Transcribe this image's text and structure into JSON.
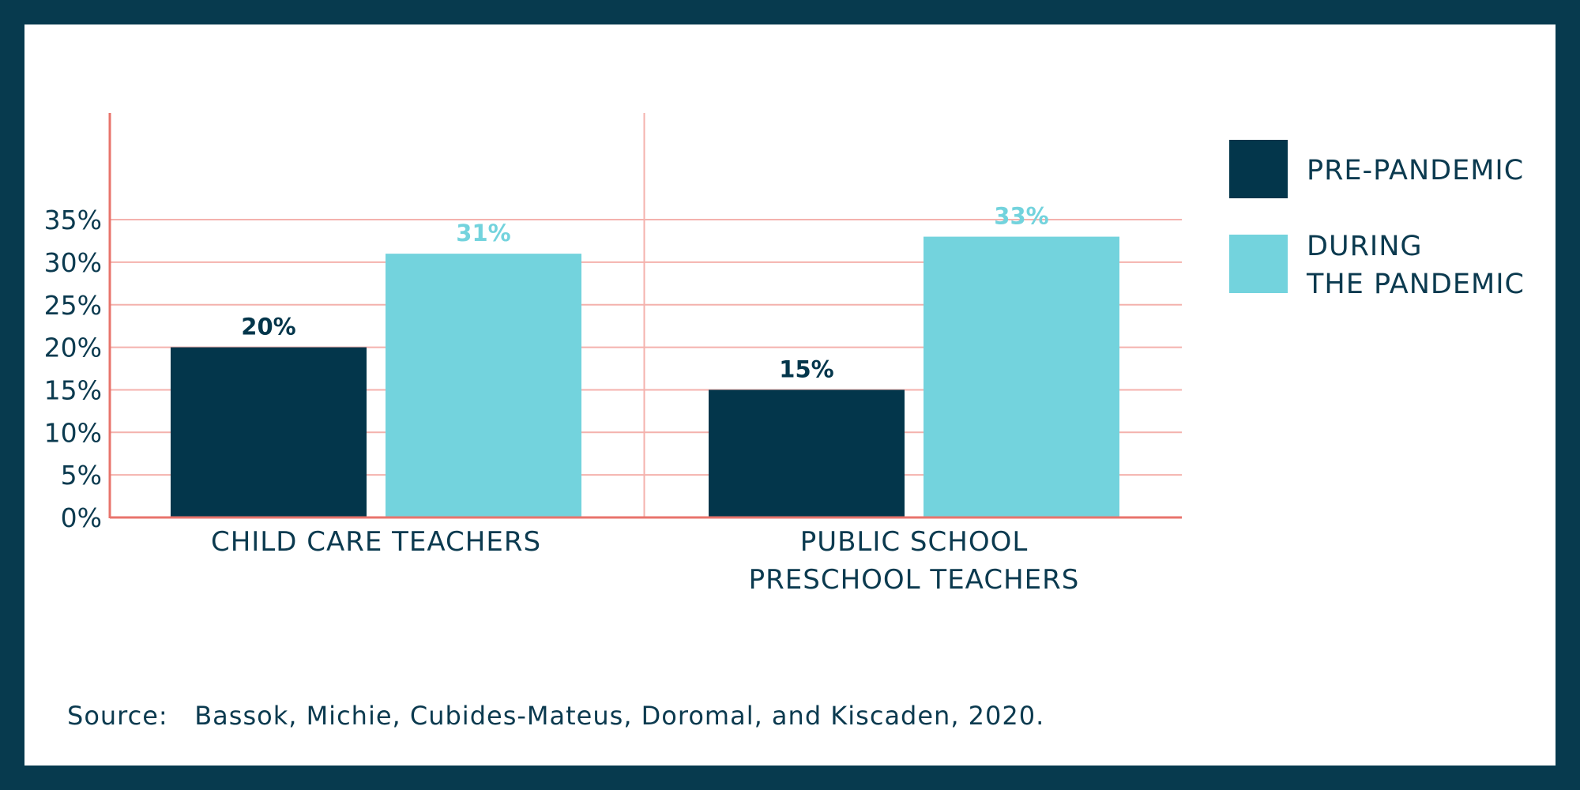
{
  "chart_data": {
    "type": "bar",
    "categories": [
      [
        "CHILD CARE TEACHERS"
      ],
      [
        "PUBLIC SCHOOL",
        "PRESCHOOL TEACHERS"
      ]
    ],
    "series": [
      {
        "name": "PRE-PANDEMIC",
        "values": [
          20,
          15
        ],
        "labels": [
          "20%",
          "15%"
        ],
        "color": "#03364b"
      },
      {
        "name": "DURING THE PANDEMIC",
        "legend_lines": [
          "DURING",
          "THE PANDEMIC"
        ],
        "values": [
          31,
          33
        ],
        "labels": [
          "31%",
          "33%"
        ],
        "color": "#73d3dd"
      }
    ],
    "y_ticks": [
      0,
      5,
      10,
      15,
      20,
      25,
      30,
      35
    ],
    "y_tick_labels": [
      "0%",
      "5%",
      "10%",
      "15%",
      "20%",
      "25%",
      "30%",
      "35%"
    ],
    "ylim": [
      0,
      37
    ],
    "grid": true,
    "legend_position": "right",
    "colors": {
      "grid": "#f4b2ad",
      "axis": "#e8746c",
      "background": "#ffffff",
      "frame": "#073a4e",
      "text": "#0b3a4f"
    }
  },
  "source": {
    "prefix": "Source:",
    "text": "Bassok, Michie, Cubides-Mateus, Doromal, and Kiscaden, 2020."
  }
}
